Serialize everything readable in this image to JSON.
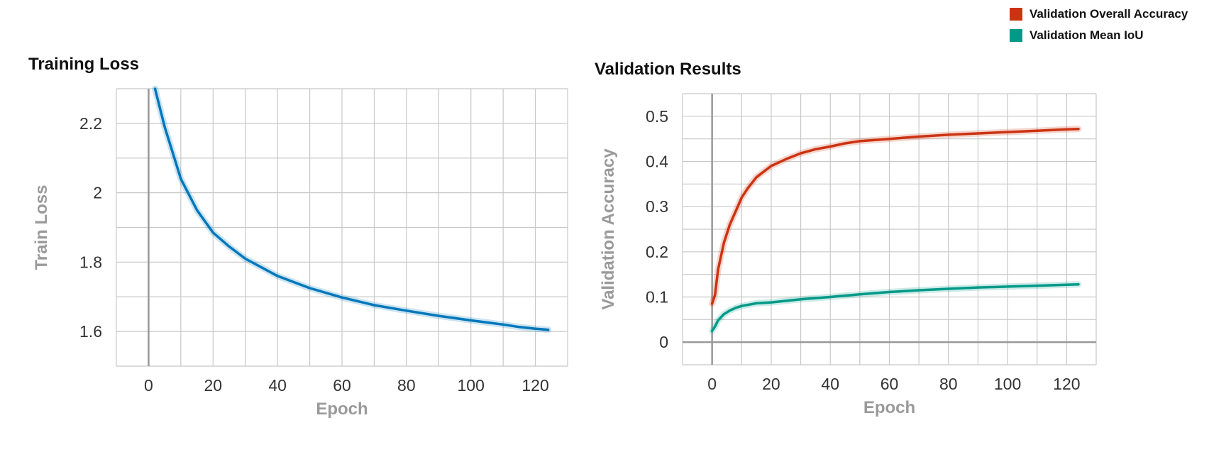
{
  "legend": {
    "items": [
      {
        "label": "Validation Overall Accuracy",
        "color": "#cc3311"
      },
      {
        "label": "Validation Mean IoU",
        "color": "#009988"
      }
    ]
  },
  "chart_data": [
    {
      "type": "line",
      "title": "Training Loss",
      "xlabel": "Epoch",
      "ylabel": "Train Loss",
      "xlim": [
        -10,
        130
      ],
      "ylim": [
        1.5,
        2.3
      ],
      "xticks": [
        0,
        20,
        40,
        60,
        80,
        100,
        120
      ],
      "yticks": [
        1.6,
        1.8,
        2,
        2.2
      ],
      "grid": true,
      "series": [
        {
          "color": "#0077bb",
          "x": [
            2,
            5,
            10,
            15,
            20,
            25,
            30,
            40,
            50,
            60,
            70,
            80,
            90,
            100,
            110,
            115,
            120,
            124
          ],
          "values": [
            2.3,
            2.19,
            2.04,
            1.95,
            1.885,
            1.845,
            1.81,
            1.76,
            1.725,
            1.698,
            1.676,
            1.66,
            1.645,
            1.632,
            1.62,
            1.613,
            1.608,
            1.605
          ]
        }
      ]
    },
    {
      "type": "line",
      "title": "Validation Results",
      "xlabel": "Epoch",
      "ylabel": "Validation Accuracy",
      "xlim": [
        -10,
        130
      ],
      "ylim": [
        -0.05,
        0.55
      ],
      "xticks": [
        0,
        20,
        40,
        60,
        80,
        100,
        120
      ],
      "yticks": [
        0,
        0.1,
        0.2,
        0.3,
        0.4,
        0.5
      ],
      "grid": true,
      "series": [
        {
          "name": "Validation Overall Accuracy",
          "color": "#cc3311",
          "x": [
            0,
            1,
            2,
            4,
            6,
            8,
            10,
            12,
            15,
            18,
            20,
            25,
            30,
            35,
            40,
            45,
            50,
            60,
            70,
            80,
            90,
            100,
            110,
            120,
            124
          ],
          "values": [
            0.085,
            0.105,
            0.16,
            0.22,
            0.26,
            0.29,
            0.32,
            0.34,
            0.365,
            0.38,
            0.39,
            0.405,
            0.418,
            0.427,
            0.433,
            0.44,
            0.445,
            0.45,
            0.455,
            0.459,
            0.462,
            0.465,
            0.468,
            0.471,
            0.472
          ]
        },
        {
          "name": "Validation Mean IoU",
          "color": "#009988",
          "x": [
            0,
            1,
            2,
            4,
            6,
            8,
            10,
            15,
            20,
            30,
            40,
            50,
            60,
            70,
            80,
            90,
            100,
            110,
            120,
            124
          ],
          "values": [
            0.025,
            0.035,
            0.048,
            0.062,
            0.07,
            0.076,
            0.08,
            0.086,
            0.088,
            0.095,
            0.1,
            0.106,
            0.111,
            0.115,
            0.118,
            0.121,
            0.123,
            0.125,
            0.127,
            0.128
          ]
        }
      ]
    }
  ]
}
